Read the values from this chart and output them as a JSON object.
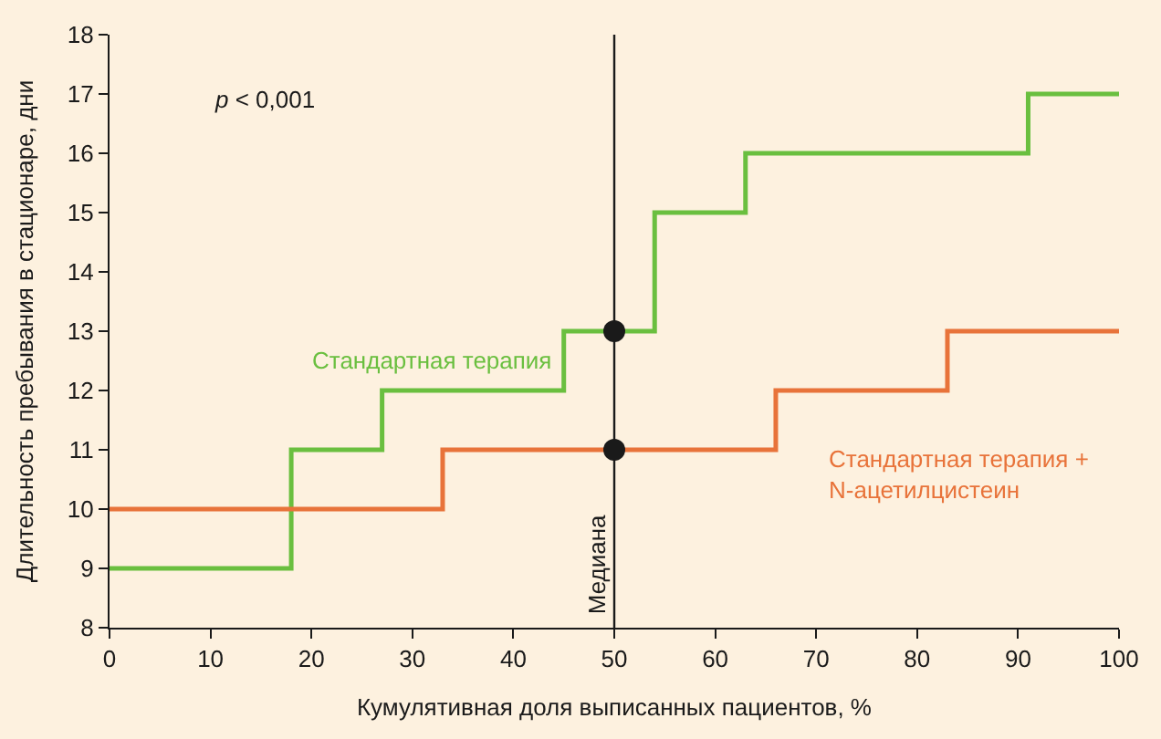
{
  "chart_data": {
    "type": "step",
    "xlabel": "Кумулятивная доля выписанных пациентов, %",
    "ylabel": "Длительность пребывания в стационаре, дни",
    "xlim": [
      0,
      100
    ],
    "xticks": [
      0,
      10,
      20,
      30,
      40,
      50,
      60,
      70,
      80,
      90,
      100
    ],
    "ylim": [
      8,
      18
    ],
    "yticks": [
      8,
      9,
      10,
      11,
      12,
      13,
      14,
      15,
      16,
      17,
      18
    ],
    "grid": false,
    "legend": false,
    "series": [
      {
        "name": "Стандартная терапия",
        "color": "#6abf3f",
        "x": [
          0,
          18,
          27,
          45,
          54,
          63,
          91,
          100
        ],
        "values": [
          9,
          11,
          12,
          13,
          15,
          16,
          17,
          17
        ]
      },
      {
        "name": "Стандартная терапия +\nN-ацетилцистеин",
        "color": "#e8733a",
        "x": [
          0,
          33,
          66,
          83,
          100
        ],
        "values": [
          10,
          11,
          12,
          13,
          13
        ]
      },
      {
        "type": "scatter",
        "color": "#1a1a1a",
        "x": [
          50,
          50
        ],
        "values": [
          13,
          11
        ],
        "marker": "circle"
      }
    ],
    "ref_lines": [
      {
        "axis": "x",
        "value": 50,
        "label": "Медиана",
        "color": "#1a1a1a"
      }
    ],
    "annotations": [
      "p < 0,001"
    ]
  }
}
